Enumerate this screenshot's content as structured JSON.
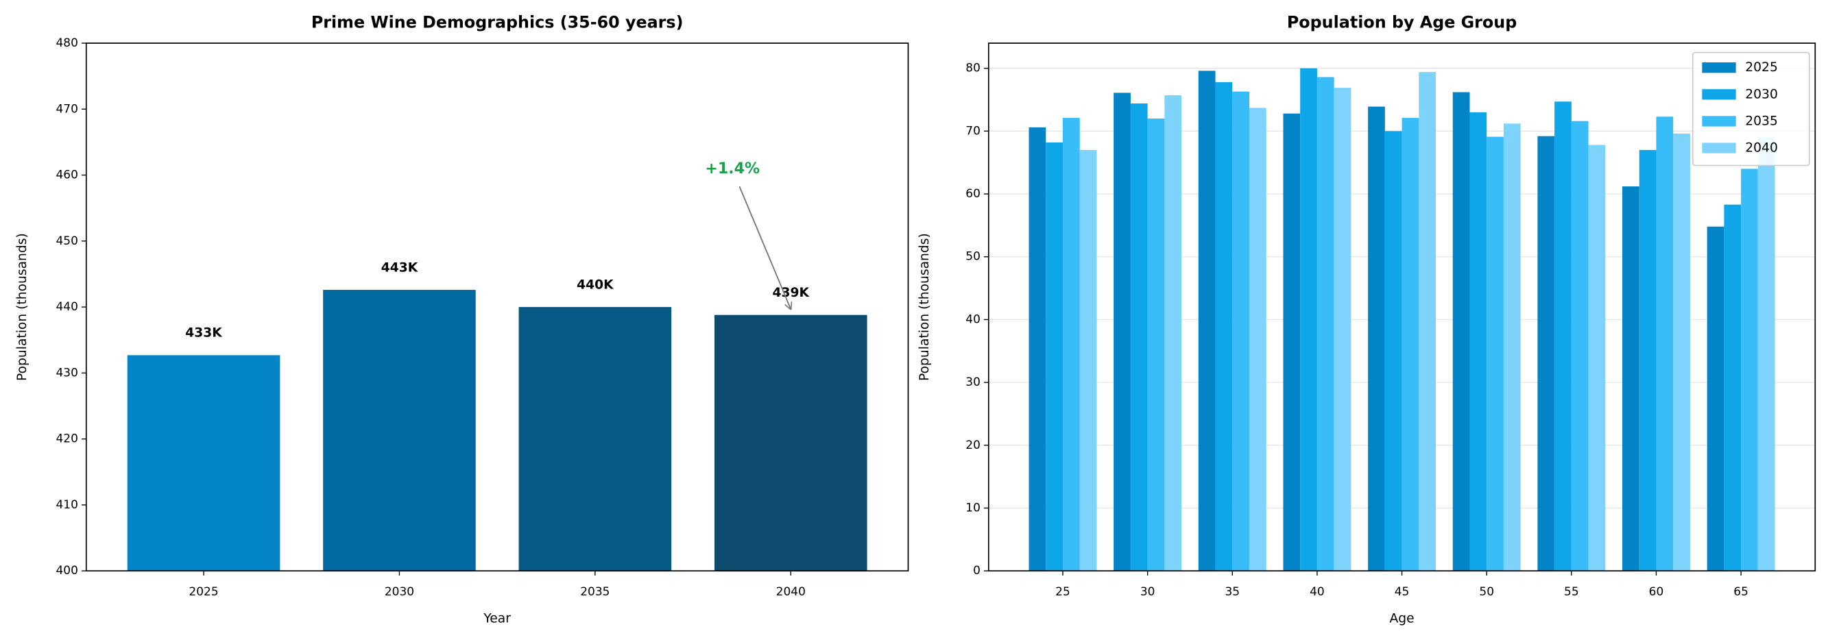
{
  "chart_data": [
    {
      "type": "bar",
      "title": "Prime Wine Demographics (35-60 years)",
      "xlabel": "Year",
      "ylabel": "Population (thousands)",
      "categories": [
        "2025",
        "2030",
        "2035",
        "2040"
      ],
      "values": [
        432.7,
        442.6,
        440.0,
        438.8
      ],
      "value_labels": [
        "433K",
        "443K",
        "440K",
        "439K"
      ],
      "colors": [
        "#0284c7",
        "#0369a1",
        "#075985",
        "#0c4a6e"
      ],
      "ylim": [
        400,
        480
      ],
      "yticks": [
        400,
        410,
        420,
        430,
        440,
        450,
        460,
        470,
        480
      ],
      "annotation": "+1.4%",
      "annotation_color": "#16a34a"
    },
    {
      "type": "grouped_bar",
      "title": "Population by Age Group",
      "xlabel": "Age",
      "ylabel": "Population (thousands)",
      "categories": [
        "25",
        "30",
        "35",
        "40",
        "45",
        "50",
        "55",
        "60",
        "65"
      ],
      "series": [
        {
          "name": "2025",
          "color": "#0284c7",
          "values": [
            70.6,
            76.1,
            79.6,
            72.8,
            73.9,
            76.2,
            69.2,
            61.2,
            54.8
          ]
        },
        {
          "name": "2030",
          "color": "#0ea5e9",
          "values": [
            68.2,
            74.4,
            77.8,
            80.0,
            70.0,
            73.0,
            74.7,
            67.0,
            58.3
          ]
        },
        {
          "name": "2035",
          "color": "#38bdf8",
          "values": [
            72.1,
            72.0,
            76.3,
            78.6,
            72.1,
            69.1,
            71.6,
            72.3,
            64.0
          ]
        },
        {
          "name": "2040",
          "color": "#7dd3fc",
          "values": [
            67.0,
            75.7,
            73.7,
            76.9,
            79.4,
            71.2,
            67.8,
            69.6,
            69.0
          ]
        }
      ],
      "ylim": [
        0,
        84
      ],
      "yticks": [
        0,
        10,
        20,
        30,
        40,
        50,
        60,
        70,
        80
      ],
      "grid": true,
      "legend": "upper right"
    }
  ]
}
